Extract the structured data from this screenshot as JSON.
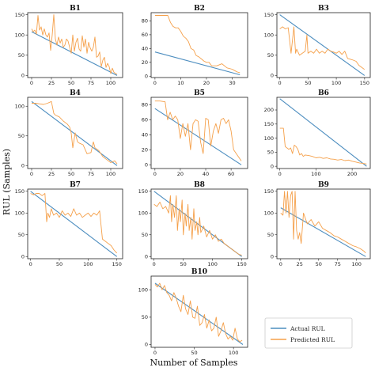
{
  "figure": {
    "xlabel": "Number of Samples",
    "ylabel": "RUL (Samples)"
  },
  "legend": {
    "entries": [
      {
        "label": "Actual RUL",
        "color": "#4c8dbf"
      },
      {
        "label": "Predicted RUL",
        "color": "#f5a04a"
      }
    ]
  },
  "colors": {
    "actual": "#4c8dbf",
    "predicted": "#f5a04a"
  },
  "chart_data": [
    {
      "type": "line",
      "title": "B1",
      "xlim": [
        -5,
        115
      ],
      "ylim": [
        -5,
        155
      ],
      "xticks": [
        0,
        25,
        50,
        75,
        100
      ],
      "yticks": [
        0,
        50,
        100,
        150
      ],
      "series": [
        {
          "name": "Actual RUL",
          "x": [
            0,
            108
          ],
          "y": [
            108,
            0
          ]
        },
        {
          "name": "Predicted RUL",
          "x": [
            0,
            2,
            4,
            6,
            8,
            10,
            12,
            14,
            16,
            18,
            20,
            22,
            24,
            26,
            28,
            30,
            32,
            34,
            36,
            38,
            40,
            42,
            44,
            46,
            48,
            50,
            52,
            54,
            56,
            58,
            60,
            62,
            64,
            66,
            68,
            70,
            72,
            74,
            76,
            78,
            80,
            82,
            84,
            86,
            88,
            90,
            92,
            94,
            96,
            98,
            100,
            102,
            104,
            106,
            108
          ],
          "y": [
            115,
            108,
            112,
            102,
            148,
            112,
            120,
            100,
            115,
            100,
            95,
            105,
            62,
            100,
            150,
            90,
            75,
            95,
            80,
            90,
            70,
            75,
            90,
            85,
            70,
            55,
            100,
            60,
            82,
            92,
            65,
            60,
            98,
            70,
            90,
            55,
            82,
            68,
            60,
            70,
            95,
            45,
            48,
            58,
            22,
            38,
            45,
            20,
            30,
            22,
            5,
            18,
            8,
            5,
            3
          ]
        }
      ]
    },
    {
      "type": "line",
      "title": "B2",
      "xlim": [
        -1.5,
        36
      ],
      "ylim": [
        -2,
        92
      ],
      "xticks": [
        0,
        10,
        20,
        30
      ],
      "yticks": [
        0,
        20,
        40,
        60,
        80
      ],
      "series": [
        {
          "name": "Actual RUL",
          "x": [
            0,
            33
          ],
          "y": [
            35,
            2
          ]
        },
        {
          "name": "Predicted RUL",
          "x": [
            0,
            3,
            5,
            6,
            7,
            8,
            9,
            10,
            11,
            12,
            13,
            14,
            15,
            16,
            17,
            18,
            19,
            20,
            21,
            22,
            24,
            26,
            28,
            30,
            31,
            32,
            33
          ],
          "y": [
            88,
            88,
            88,
            78,
            72,
            70,
            70,
            65,
            58,
            55,
            50,
            40,
            38,
            30,
            28,
            25,
            22,
            20,
            20,
            15,
            15,
            18,
            12,
            10,
            8,
            6,
            5
          ]
        }
      ]
    },
    {
      "type": "line",
      "title": "B3",
      "xlim": [
        -5,
        160
      ],
      "ylim": [
        -5,
        155
      ],
      "xticks": [
        0,
        50,
        100,
        150
      ],
      "yticks": [
        0,
        50,
        100,
        150
      ],
      "series": [
        {
          "name": "Actual RUL",
          "x": [
            0,
            150
          ],
          "y": [
            150,
            0
          ]
        },
        {
          "name": "Predicted RUL",
          "x": [
            0,
            5,
            10,
            15,
            20,
            25,
            28,
            30,
            35,
            40,
            45,
            48,
            50,
            55,
            60,
            65,
            70,
            75,
            80,
            85,
            90,
            95,
            100,
            105,
            110,
            115,
            120,
            125,
            130,
            135,
            140,
            145,
            150
          ],
          "y": [
            115,
            120,
            115,
            118,
            55,
            120,
            55,
            65,
            50,
            55,
            60,
            100,
            55,
            60,
            55,
            65,
            55,
            60,
            55,
            65,
            60,
            58,
            55,
            60,
            52,
            60,
            42,
            40,
            38,
            35,
            25,
            20,
            15
          ]
        }
      ]
    },
    {
      "type": "line",
      "title": "B4",
      "xlim": [
        -5,
        115
      ],
      "ylim": [
        -5,
        115
      ],
      "xticks": [
        0,
        25,
        50,
        75,
        100
      ],
      "yticks": [
        0,
        50,
        100
      ],
      "series": [
        {
          "name": "Actual RUL",
          "x": [
            0,
            108
          ],
          "y": [
            108,
            0
          ]
        },
        {
          "name": "Predicted RUL",
          "x": [
            0,
            5,
            10,
            15,
            20,
            25,
            28,
            30,
            35,
            40,
            45,
            48,
            50,
            52,
            55,
            58,
            60,
            65,
            70,
            75,
            78,
            80,
            85,
            90,
            95,
            100,
            105,
            108
          ],
          "y": [
            105,
            105,
            104,
            103,
            105,
            108,
            88,
            85,
            82,
            75,
            70,
            65,
            55,
            30,
            55,
            40,
            38,
            35,
            20,
            22,
            40,
            30,
            25,
            15,
            10,
            5,
            8,
            3
          ]
        }
      ]
    },
    {
      "type": "line",
      "title": "B5",
      "xlim": [
        -3,
        73
      ],
      "ylim": [
        -5,
        90
      ],
      "xticks": [
        0,
        20,
        40,
        60
      ],
      "yticks": [
        0,
        20,
        40,
        60,
        80
      ],
      "series": [
        {
          "name": "Actual RUL",
          "x": [
            0,
            68
          ],
          "y": [
            75,
            0
          ]
        },
        {
          "name": "Predicted RUL",
          "x": [
            0,
            4,
            8,
            10,
            12,
            14,
            16,
            18,
            20,
            22,
            24,
            26,
            28,
            30,
            32,
            34,
            36,
            38,
            40,
            42,
            44,
            46,
            48,
            50,
            52,
            54,
            56,
            58,
            60,
            62,
            64,
            66,
            68
          ],
          "y": [
            85,
            85,
            84,
            60,
            70,
            60,
            65,
            60,
            35,
            55,
            38,
            55,
            20,
            55,
            60,
            58,
            30,
            15,
            62,
            60,
            25,
            45,
            55,
            42,
            60,
            62,
            55,
            60,
            45,
            20,
            15,
            10,
            5
          ]
        }
      ]
    },
    {
      "type": "line",
      "title": "B6",
      "xlim": [
        -8,
        250
      ],
      "ylim": [
        -8,
        245
      ],
      "xticks": [
        0,
        100,
        200
      ],
      "yticks": [
        0,
        50,
        100,
        150,
        200
      ],
      "series": [
        {
          "name": "Actual RUL",
          "x": [
            0,
            240
          ],
          "y": [
            240,
            0
          ]
        },
        {
          "name": "Predicted RUL",
          "x": [
            0,
            10,
            15,
            20,
            25,
            30,
            35,
            40,
            45,
            50,
            55,
            60,
            65,
            70,
            80,
            90,
            100,
            110,
            120,
            130,
            140,
            150,
            160,
            170,
            180,
            190,
            200,
            210,
            220,
            230,
            240
          ],
          "y": [
            135,
            135,
            70,
            65,
            60,
            65,
            45,
            75,
            70,
            60,
            40,
            45,
            35,
            40,
            38,
            35,
            30,
            32,
            28,
            30,
            26,
            25,
            22,
            24,
            20,
            22,
            18,
            15,
            12,
            10,
            8
          ]
        }
      ]
    },
    {
      "type": "line",
      "title": "B7",
      "xlim": [
        -5,
        160
      ],
      "ylim": [
        -5,
        155
      ],
      "xticks": [
        0,
        50,
        100,
        150
      ],
      "yticks": [
        0,
        50,
        100,
        150
      ],
      "series": [
        {
          "name": "Actual RUL",
          "x": [
            0,
            150
          ],
          "y": [
            150,
            0
          ]
        },
        {
          "name": "Predicted RUL",
          "x": [
            0,
            5,
            10,
            15,
            20,
            25,
            28,
            30,
            33,
            36,
            40,
            45,
            50,
            55,
            60,
            65,
            70,
            75,
            80,
            85,
            90,
            95,
            100,
            105,
            110,
            115,
            120,
            125,
            130,
            135,
            140,
            145,
            150
          ],
          "y": [
            145,
            142,
            145,
            145,
            140,
            145,
            80,
            100,
            90,
            110,
            95,
            100,
            90,
            105,
            95,
            100,
            92,
            110,
            95,
            100,
            90,
            95,
            100,
            92,
            100,
            95,
            105,
            40,
            35,
            30,
            25,
            15,
            8
          ]
        }
      ]
    },
    {
      "type": "line",
      "title": "B8",
      "xlim": [
        -5,
        160
      ],
      "ylim": [
        -5,
        155
      ],
      "xticks": [
        0,
        50,
        100,
        150
      ],
      "yticks": [
        0,
        50,
        100,
        150
      ],
      "series": [
        {
          "name": "Actual RUL",
          "x": [
            0,
            150
          ],
          "y": [
            150,
            0
          ]
        },
        {
          "name": "Predicted RUL",
          "x": [
            0,
            5,
            10,
            15,
            20,
            25,
            28,
            30,
            32,
            35,
            38,
            40,
            43,
            45,
            48,
            50,
            53,
            55,
            58,
            60,
            63,
            65,
            68,
            70,
            73,
            75,
            78,
            80,
            85,
            90,
            95,
            100,
            105,
            110,
            115,
            120,
            125,
            130,
            135,
            140,
            145,
            150
          ],
          "y": [
            120,
            115,
            125,
            110,
            115,
            100,
            140,
            80,
            120,
            90,
            140,
            60,
            110,
            80,
            130,
            50,
            100,
            70,
            120,
            60,
            90,
            40,
            110,
            60,
            80,
            50,
            90,
            55,
            70,
            45,
            60,
            40,
            50,
            35,
            40,
            30,
            25,
            20,
            15,
            10,
            5,
            3
          ]
        }
      ]
    },
    {
      "type": "line",
      "title": "B9",
      "xlim": [
        -5,
        118
      ],
      "ylim": [
        -5,
        155
      ],
      "xticks": [
        0,
        25,
        50,
        75,
        100
      ],
      "yticks": [
        0,
        50,
        100,
        150
      ],
      "series": [
        {
          "name": "Actual RUL",
          "x": [
            0,
            112
          ],
          "y": [
            112,
            0
          ]
        },
        {
          "name": "Predicted RUL",
          "x": [
            0,
            3,
            5,
            7,
            9,
            11,
            13,
            15,
            17,
            19,
            21,
            23,
            25,
            27,
            30,
            35,
            40,
            45,
            50,
            55,
            60,
            65,
            70,
            75,
            80,
            85,
            90,
            95,
            100,
            105,
            110,
            112
          ],
          "y": [
            100,
            95,
            150,
            100,
            150,
            90,
            140,
            150,
            40,
            150,
            60,
            40,
            55,
            30,
            100,
            75,
            85,
            70,
            80,
            65,
            60,
            55,
            48,
            45,
            40,
            35,
            30,
            25,
            22,
            18,
            12,
            8
          ]
        }
      ]
    },
    {
      "type": "line",
      "title": "B10",
      "xlim": [
        -5,
        118
      ],
      "ylim": [
        -5,
        125
      ],
      "xticks": [
        0,
        50,
        100
      ],
      "yticks": [
        0,
        50,
        100
      ],
      "series": [
        {
          "name": "Actual RUL",
          "x": [
            0,
            112
          ],
          "y": [
            112,
            0
          ]
        },
        {
          "name": "Predicted RUL",
          "x": [
            0,
            3,
            6,
            9,
            12,
            15,
            18,
            21,
            24,
            27,
            30,
            33,
            36,
            39,
            42,
            45,
            48,
            51,
            54,
            57,
            60,
            63,
            66,
            69,
            72,
            75,
            78,
            81,
            84,
            87,
            90,
            93,
            96,
            99,
            102,
            105,
            108,
            111
          ],
          "y": [
            110,
            105,
            112,
            100,
            108,
            95,
            90,
            80,
            95,
            85,
            70,
            60,
            90,
            65,
            55,
            80,
            50,
            48,
            70,
            35,
            40,
            55,
            30,
            45,
            25,
            30,
            50,
            15,
            25,
            40,
            20,
            10,
            15,
            8,
            30,
            10,
            5,
            8
          ]
        }
      ]
    }
  ]
}
